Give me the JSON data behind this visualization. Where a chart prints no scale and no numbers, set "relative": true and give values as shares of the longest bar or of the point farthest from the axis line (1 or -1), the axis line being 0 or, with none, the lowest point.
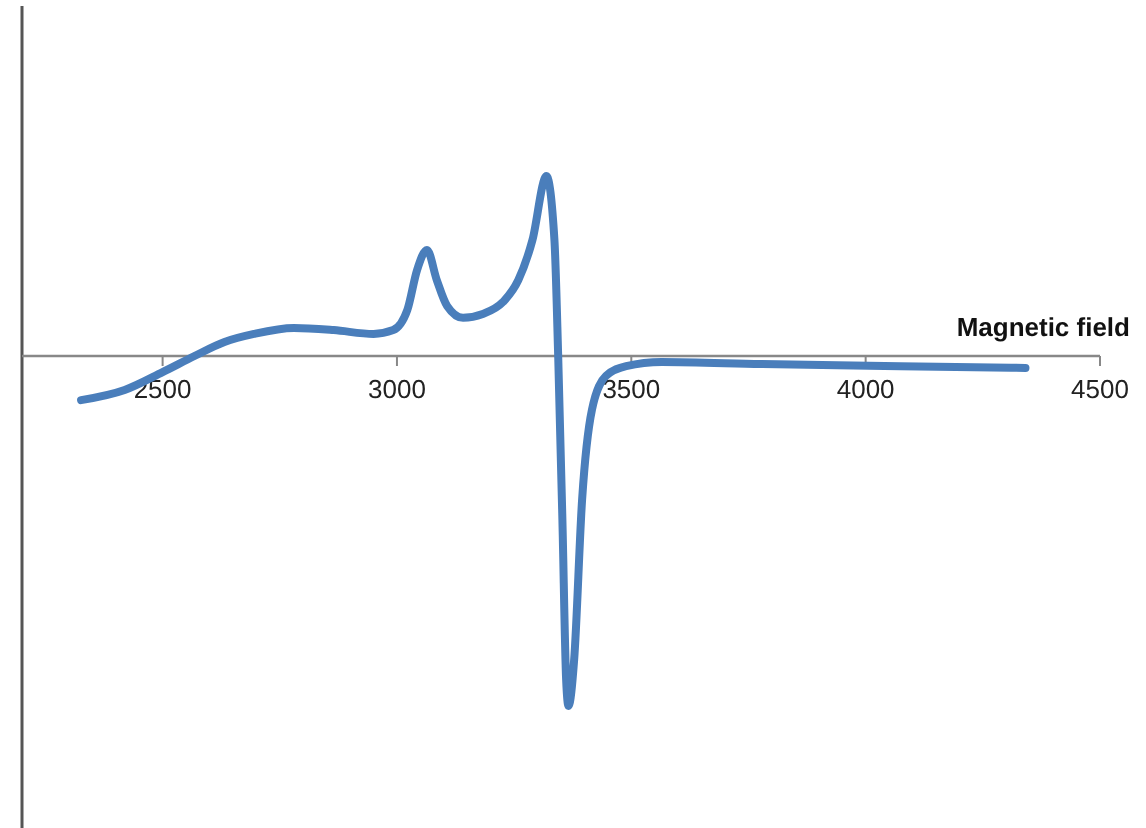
{
  "chart_data": {
    "type": "line",
    "relative": true,
    "xlabel": "Magnetic field",
    "xlim": [
      2200,
      4500
    ],
    "xticks": [
      2500,
      3000,
      3500,
      4000,
      4500
    ],
    "tick_labels": "x",
    "grid": false,
    "marker": "none",
    "line_style": "solid",
    "series": [
      {
        "color": "#4a7ebb",
        "x": [
          2326,
          2419,
          2500,
          2568,
          2632,
          2695,
          2780,
          2865,
          2950,
          2992,
          3022,
          3043,
          3064,
          3085,
          3107,
          3141,
          3183,
          3226,
          3259,
          3289,
          3319,
          3336,
          3344,
          3353,
          3361,
          3366,
          3378,
          3395,
          3416,
          3446,
          3489,
          3565,
          3777,
          4074,
          4341
        ],
        "values": [
          -0.126,
          -0.097,
          -0.046,
          0,
          0.04,
          0.063,
          0.08,
          0.074,
          0.063,
          0.074,
          0.131,
          0.246,
          0.303,
          0.217,
          0.143,
          0.109,
          0.12,
          0.154,
          0.217,
          0.331,
          0.514,
          0.331,
          0,
          -0.469,
          -0.926,
          -1,
          -0.869,
          -0.411,
          -0.154,
          -0.057,
          -0.029,
          -0.017,
          -0.023,
          -0.029,
          -0.034
        ]
      }
    ]
  }
}
